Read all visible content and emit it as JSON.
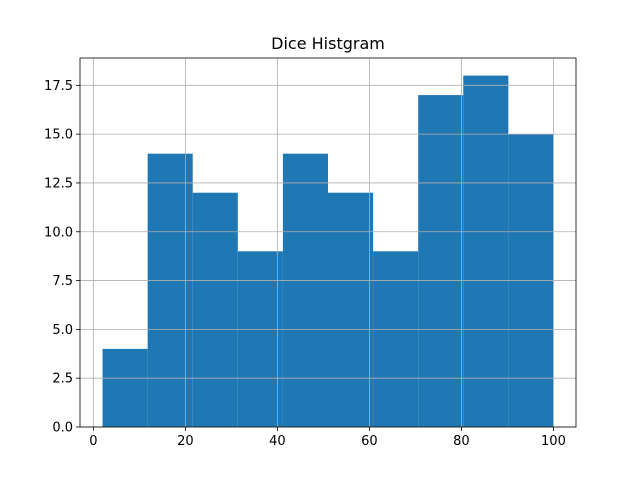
{
  "chart_data": {
    "type": "bar",
    "title": "Dice Histgram",
    "xlabel": "",
    "ylabel": "",
    "bins": [
      {
        "x0": 2.0,
        "x1": 11.8,
        "count": 4
      },
      {
        "x0": 11.8,
        "x1": 21.6,
        "count": 14
      },
      {
        "x0": 21.6,
        "x1": 31.4,
        "count": 12
      },
      {
        "x0": 31.4,
        "x1": 41.2,
        "count": 9
      },
      {
        "x0": 41.2,
        "x1": 51.0,
        "count": 14
      },
      {
        "x0": 51.0,
        "x1": 60.8,
        "count": 12
      },
      {
        "x0": 60.8,
        "x1": 70.6,
        "count": 9
      },
      {
        "x0": 70.6,
        "x1": 80.4,
        "count": 17
      },
      {
        "x0": 80.4,
        "x1": 90.2,
        "count": 18
      },
      {
        "x0": 90.2,
        "x1": 100.0,
        "count": 15
      }
    ],
    "xlim": [
      -2.9,
      104.9
    ],
    "ylim": [
      0,
      18.9
    ],
    "xticks": [
      0,
      20,
      40,
      60,
      80,
      100
    ],
    "xtick_labels": [
      "0",
      "20",
      "40",
      "60",
      "80",
      "100"
    ],
    "yticks": [
      0,
      2.5,
      5.0,
      7.5,
      10.0,
      12.5,
      15.0,
      17.5
    ],
    "ytick_labels": [
      "0.0",
      "2.5",
      "5.0",
      "7.5",
      "10.0",
      "12.5",
      "15.0",
      "17.5"
    ],
    "grid": true,
    "bar_color": "#1f77b4"
  }
}
